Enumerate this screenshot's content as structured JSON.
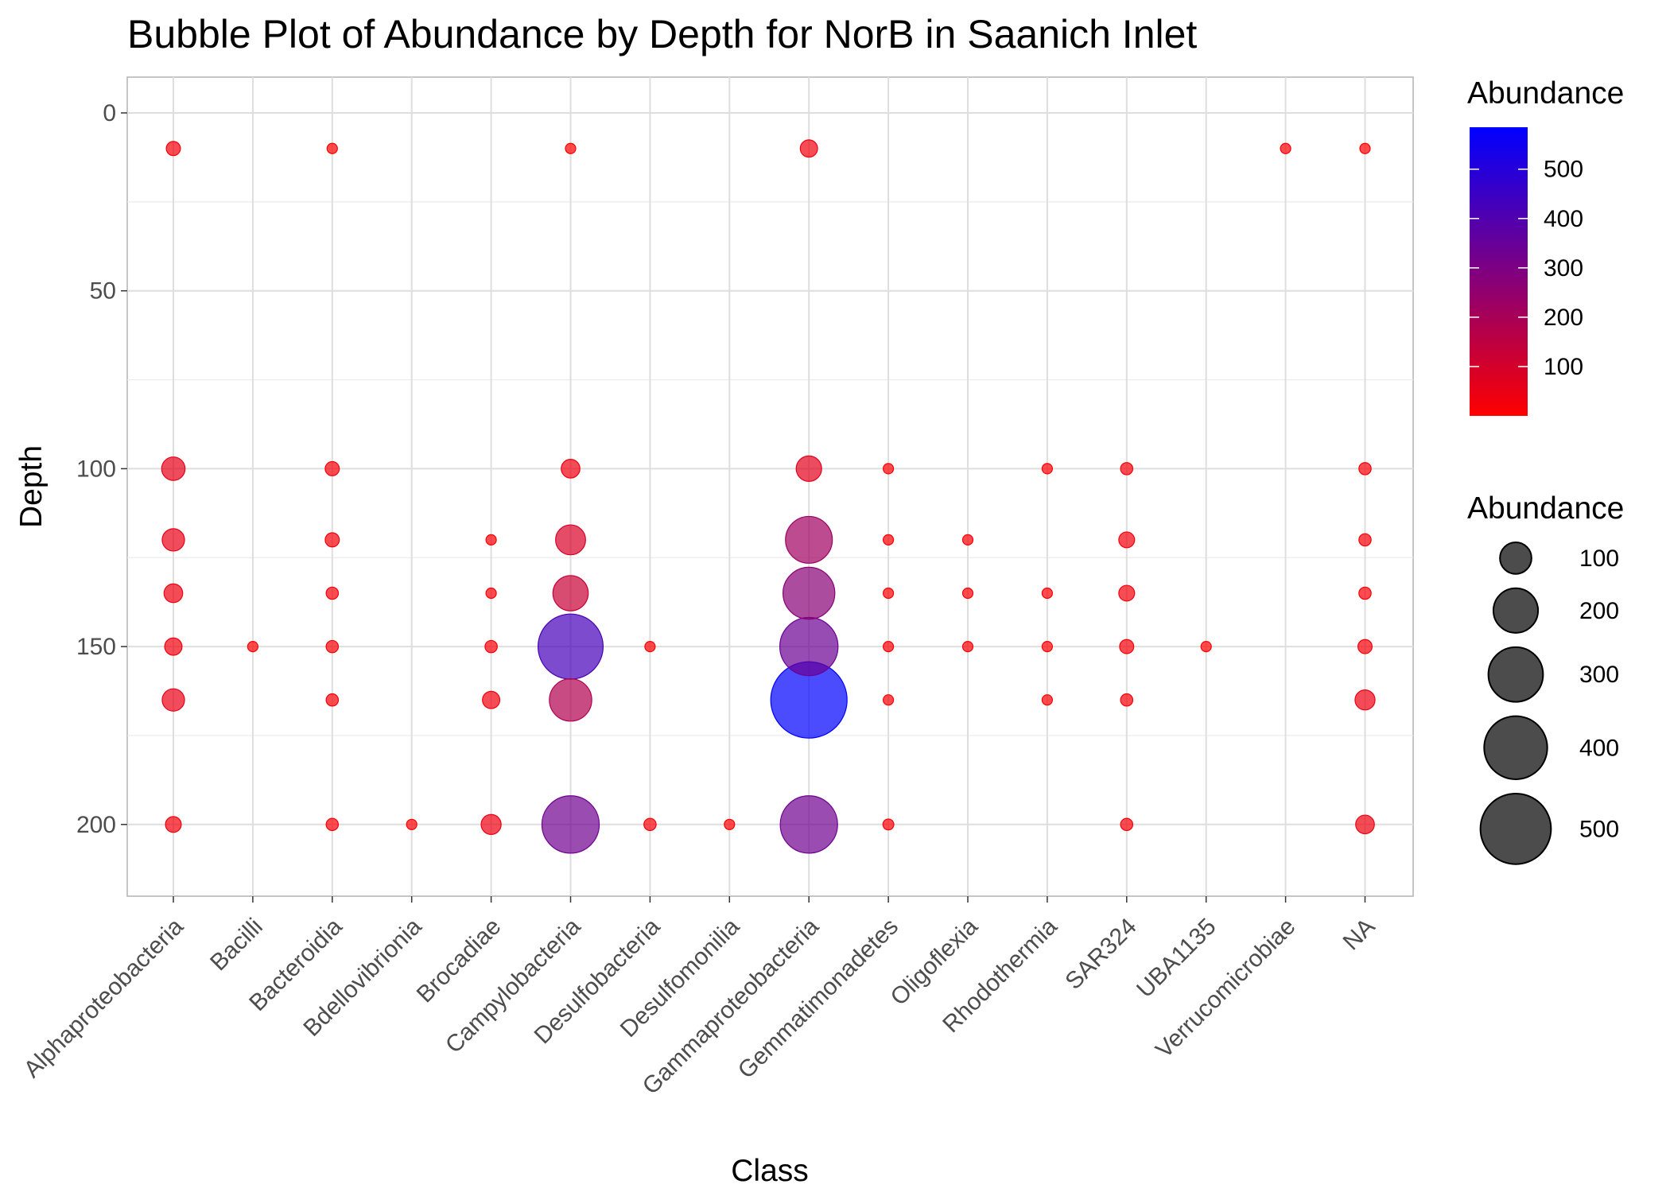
{
  "chart_data": {
    "type": "scatter",
    "title": "Bubble Plot of Abundance by Depth for NorB in Saanich Inlet",
    "xlabel": "Class",
    "ylabel": "Depth",
    "categories": [
      "Alphaproteobacteria",
      "Bacilli",
      "Bacteroidia",
      "Bdellovibrionia",
      "Brocadiae",
      "Campylobacteria",
      "Desulfobacteria",
      "Desulfomonilia",
      "Gammaproteobacteria",
      "Gemmatimonadetes",
      "Oligoflexia",
      "Rhodothermia",
      "SAR324",
      "UBA1135",
      "Verrucomicrobiae",
      "NA"
    ],
    "y_reversed": true,
    "ylim": [
      0,
      220
    ],
    "yticks": [
      0,
      50,
      100,
      150,
      200
    ],
    "grid": true,
    "color_scale": {
      "low": "#ff0000",
      "high": "#0000ff",
      "min": 0,
      "max": 585
    },
    "legend_color": {
      "title": "Abundance",
      "ticks": [
        100,
        200,
        300,
        400,
        500
      ],
      "position": "right"
    },
    "legend_size": {
      "title": "Abundance",
      "values": [
        100,
        200,
        300,
        400,
        500
      ],
      "position": "right"
    },
    "points": [
      {
        "class": "Alphaproteobacteria",
        "depth": 10,
        "abundance": 20
      },
      {
        "class": "Alphaproteobacteria",
        "depth": 100,
        "abundance": 55
      },
      {
        "class": "Alphaproteobacteria",
        "depth": 120,
        "abundance": 50
      },
      {
        "class": "Alphaproteobacteria",
        "depth": 135,
        "abundance": 35
      },
      {
        "class": "Alphaproteobacteria",
        "depth": 150,
        "abundance": 30
      },
      {
        "class": "Alphaproteobacteria",
        "depth": 165,
        "abundance": 50
      },
      {
        "class": "Alphaproteobacteria",
        "depth": 200,
        "abundance": 25
      },
      {
        "class": "Bacilli",
        "depth": 150,
        "abundance": 5
      },
      {
        "class": "Bacteroidia",
        "depth": 10,
        "abundance": 5
      },
      {
        "class": "Bacteroidia",
        "depth": 100,
        "abundance": 20
      },
      {
        "class": "Bacteroidia",
        "depth": 120,
        "abundance": 20
      },
      {
        "class": "Bacteroidia",
        "depth": 135,
        "abundance": 15
      },
      {
        "class": "Bacteroidia",
        "depth": 150,
        "abundance": 15
      },
      {
        "class": "Bacteroidia",
        "depth": 165,
        "abundance": 15
      },
      {
        "class": "Bacteroidia",
        "depth": 200,
        "abundance": 15
      },
      {
        "class": "Bdellovibrionia",
        "depth": 200,
        "abundance": 8
      },
      {
        "class": "Brocadiae",
        "depth": 120,
        "abundance": 10
      },
      {
        "class": "Brocadiae",
        "depth": 135,
        "abundance": 10
      },
      {
        "class": "Brocadiae",
        "depth": 150,
        "abundance": 15
      },
      {
        "class": "Brocadiae",
        "depth": 165,
        "abundance": 30
      },
      {
        "class": "Brocadiae",
        "depth": 200,
        "abundance": 40
      },
      {
        "class": "Campylobacteria",
        "depth": 10,
        "abundance": 5
      },
      {
        "class": "Campylobacteria",
        "depth": 100,
        "abundance": 35
      },
      {
        "class": "Campylobacteria",
        "depth": 120,
        "abundance": 90
      },
      {
        "class": "Campylobacteria",
        "depth": 135,
        "abundance": 125
      },
      {
        "class": "Campylobacteria",
        "depth": 150,
        "abundance": 425
      },
      {
        "class": "Campylobacteria",
        "depth": 165,
        "abundance": 180
      },
      {
        "class": "Campylobacteria",
        "depth": 200,
        "abundance": 330
      },
      {
        "class": "Desulfobacteria",
        "depth": 150,
        "abundance": 5
      },
      {
        "class": "Desulfobacteria",
        "depth": 200,
        "abundance": 15
      },
      {
        "class": "Desulfomonilia",
        "depth": 200,
        "abundance": 8
      },
      {
        "class": "Gammaproteobacteria",
        "depth": 10,
        "abundance": 30
      },
      {
        "class": "Gammaproteobacteria",
        "depth": 100,
        "abundance": 65
      },
      {
        "class": "Gammaproteobacteria",
        "depth": 120,
        "abundance": 220
      },
      {
        "class": "Gammaproteobacteria",
        "depth": 135,
        "abundance": 270
      },
      {
        "class": "Gammaproteobacteria",
        "depth": 150,
        "abundance": 340
      },
      {
        "class": "Gammaproteobacteria",
        "depth": 165,
        "abundance": 585
      },
      {
        "class": "Gammaproteobacteria",
        "depth": 200,
        "abundance": 330
      },
      {
        "class": "Gemmatimonadetes",
        "depth": 100,
        "abundance": 8
      },
      {
        "class": "Gemmatimonadetes",
        "depth": 120,
        "abundance": 10
      },
      {
        "class": "Gemmatimonadetes",
        "depth": 135,
        "abundance": 8
      },
      {
        "class": "Gemmatimonadetes",
        "depth": 150,
        "abundance": 10
      },
      {
        "class": "Gemmatimonadetes",
        "depth": 165,
        "abundance": 10
      },
      {
        "class": "Gemmatimonadetes",
        "depth": 200,
        "abundance": 12
      },
      {
        "class": "Oligoflexia",
        "depth": 120,
        "abundance": 8
      },
      {
        "class": "Oligoflexia",
        "depth": 135,
        "abundance": 8
      },
      {
        "class": "Oligoflexia",
        "depth": 150,
        "abundance": 10
      },
      {
        "class": "Rhodothermia",
        "depth": 100,
        "abundance": 7
      },
      {
        "class": "Rhodothermia",
        "depth": 135,
        "abundance": 7
      },
      {
        "class": "Rhodothermia",
        "depth": 150,
        "abundance": 7
      },
      {
        "class": "Rhodothermia",
        "depth": 165,
        "abundance": 7
      },
      {
        "class": "SAR324",
        "depth": 100,
        "abundance": 15
      },
      {
        "class": "SAR324",
        "depth": 120,
        "abundance": 25
      },
      {
        "class": "SAR324",
        "depth": 135,
        "abundance": 25
      },
      {
        "class": "SAR324",
        "depth": 150,
        "abundance": 20
      },
      {
        "class": "SAR324",
        "depth": 165,
        "abundance": 15
      },
      {
        "class": "SAR324",
        "depth": 200,
        "abundance": 15
      },
      {
        "class": "UBA1135",
        "depth": 150,
        "abundance": 5
      },
      {
        "class": "Verrucomicrobiae",
        "depth": 10,
        "abundance": 10
      },
      {
        "class": "NA",
        "depth": 10,
        "abundance": 5
      },
      {
        "class": "NA",
        "depth": 100,
        "abundance": 15
      },
      {
        "class": "NA",
        "depth": 120,
        "abundance": 15
      },
      {
        "class": "NA",
        "depth": 135,
        "abundance": 15
      },
      {
        "class": "NA",
        "depth": 150,
        "abundance": 20
      },
      {
        "class": "NA",
        "depth": 165,
        "abundance": 40
      },
      {
        "class": "NA",
        "depth": 200,
        "abundance": 35
      }
    ]
  }
}
